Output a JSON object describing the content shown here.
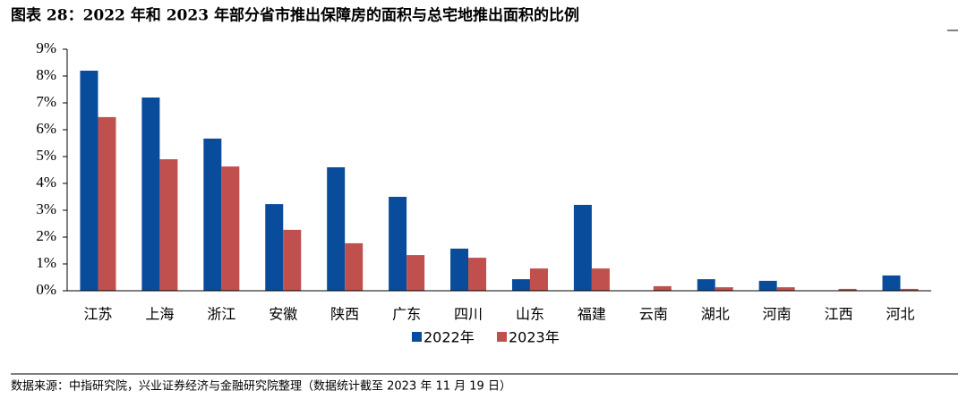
{
  "chart_data": {
    "type": "bar",
    "title": "图表 28：2022 年和 2023 年部分省市推出保障房的面积与总宅地推出面积的比例",
    "source": "数据来源：中指研究院，兴业证券经济与金融研究院整理（数据统计截至 2023 年 11 月 19 日）",
    "categories": [
      "江苏",
      "上海",
      "浙江",
      "安徽",
      "陕西",
      "广东",
      "四川",
      "山东",
      "福建",
      "云南",
      "湖北",
      "河南",
      "江西",
      "河北"
    ],
    "series": [
      {
        "name": "2022年",
        "color": "#0a4c9c",
        "values": [
          8.2,
          7.2,
          5.67,
          3.23,
          4.6,
          3.5,
          1.57,
          0.43,
          3.2,
          0,
          0.43,
          0.37,
          0,
          0.57
        ]
      },
      {
        "name": "2023年",
        "color": "#c0504d",
        "values": [
          6.47,
          4.9,
          4.63,
          2.27,
          1.77,
          1.33,
          1.23,
          0.83,
          0.83,
          0.17,
          0.13,
          0.13,
          0.07,
          0.07
        ]
      }
    ],
    "ylim": [
      0,
      9
    ],
    "yticks": [
      {
        "value": 0,
        "label": "0%"
      },
      {
        "value": 1,
        "label": "1%"
      },
      {
        "value": 2,
        "label": "2%"
      },
      {
        "value": 3,
        "label": "3%"
      },
      {
        "value": 4,
        "label": "4%"
      },
      {
        "value": 5,
        "label": "5%"
      },
      {
        "value": 6,
        "label": "6%"
      },
      {
        "value": 7,
        "label": "7%"
      },
      {
        "value": 8,
        "label": "8%"
      },
      {
        "value": 9,
        "label": "9%"
      }
    ],
    "grid": false
  }
}
